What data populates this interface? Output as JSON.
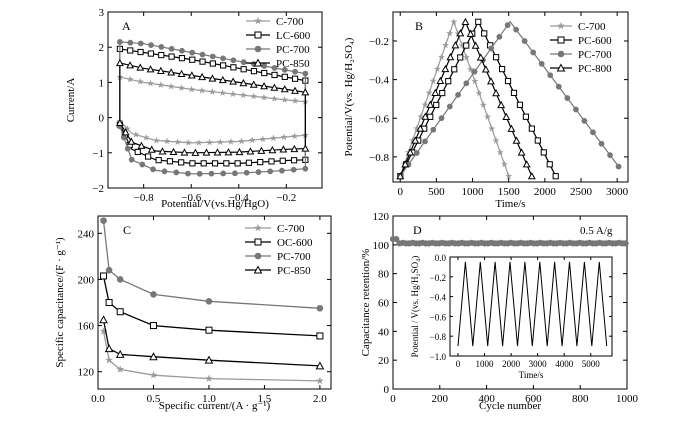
{
  "chart_data": [
    {
      "panel": "A",
      "type": "line",
      "xlabel": "Potential/V(vs.Hg/HgO)",
      "ylabel": "Current/A",
      "xlim": [
        -0.95,
        -0.05
      ],
      "ylim": [
        -2,
        3
      ],
      "xticks": [
        -0.8,
        -0.6,
        -0.4,
        -0.2
      ],
      "xtick_labels": [
        "−0.8",
        "−0.6",
        "−0.4",
        "−0.2"
      ],
      "yticks": [
        -2,
        -1,
        0,
        1,
        2,
        3
      ],
      "yticks_labels": [
        "−2",
        "−1",
        "0",
        "1",
        "2",
        "3"
      ],
      "legend_position": "top-right",
      "series": [
        {
          "name": "C-700",
          "color": "#9a9a9a",
          "marker": "star",
          "upper": [
            [
              -0.9,
              1.15
            ],
            [
              -0.8,
              1.0
            ],
            [
              -0.6,
              0.8
            ],
            [
              -0.4,
              0.65
            ],
            [
              -0.2,
              0.5
            ],
            [
              -0.12,
              0.45
            ]
          ],
          "lower": [
            [
              -0.9,
              -0.1
            ],
            [
              -0.85,
              -0.45
            ],
            [
              -0.75,
              -0.65
            ],
            [
              -0.6,
              -0.72
            ],
            [
              -0.4,
              -0.68
            ],
            [
              -0.2,
              -0.55
            ],
            [
              -0.12,
              -0.5
            ]
          ]
        },
        {
          "name": "LC-600",
          "color": "#000000",
          "marker": "square",
          "upper": [
            [
              -0.9,
              1.95
            ],
            [
              -0.8,
              1.85
            ],
            [
              -0.6,
              1.65
            ],
            [
              -0.4,
              1.4
            ],
            [
              -0.2,
              1.15
            ],
            [
              -0.12,
              1.05
            ]
          ],
          "lower": [
            [
              -0.9,
              -0.2
            ],
            [
              -0.85,
              -0.9
            ],
            [
              -0.75,
              -1.2
            ],
            [
              -0.6,
              -1.3
            ],
            [
              -0.4,
              -1.3
            ],
            [
              -0.2,
              -1.22
            ],
            [
              -0.12,
              -1.2
            ]
          ]
        },
        {
          "name": "PC-700",
          "color": "#777777",
          "marker": "circle",
          "upper": [
            [
              -0.9,
              2.15
            ],
            [
              -0.8,
              2.1
            ],
            [
              -0.6,
              1.85
            ],
            [
              -0.4,
              1.6
            ],
            [
              -0.2,
              1.35
            ],
            [
              -0.12,
              1.25
            ]
          ],
          "lower": [
            [
              -0.9,
              -0.25
            ],
            [
              -0.85,
              -1.2
            ],
            [
              -0.75,
              -1.5
            ],
            [
              -0.6,
              -1.6
            ],
            [
              -0.4,
              -1.58
            ],
            [
              -0.2,
              -1.5
            ],
            [
              -0.12,
              -1.45
            ]
          ]
        },
        {
          "name": "PC-850",
          "color": "#000000",
          "marker": "triangle",
          "upper": [
            [
              -0.9,
              1.55
            ],
            [
              -0.8,
              1.4
            ],
            [
              -0.6,
              1.2
            ],
            [
              -0.4,
              1.0
            ],
            [
              -0.2,
              0.8
            ],
            [
              -0.12,
              0.72
            ]
          ],
          "lower": [
            [
              -0.9,
              -0.15
            ],
            [
              -0.85,
              -0.7
            ],
            [
              -0.75,
              -0.95
            ],
            [
              -0.6,
              -1.0
            ],
            [
              -0.4,
              -0.98
            ],
            [
              -0.2,
              -0.9
            ],
            [
              -0.12,
              -0.88
            ]
          ]
        }
      ]
    },
    {
      "panel": "B",
      "type": "line",
      "xlabel": "Time/s",
      "ylabel": "Potential/V(vs. Hg/H₂SO₄)",
      "xlim": [
        -100,
        3150
      ],
      "ylim": [
        -0.93,
        -0.05
      ],
      "xticks": [
        0,
        500,
        1000,
        1500,
        2000,
        2500,
        3000
      ],
      "xtick_labels": [
        "0",
        "500",
        "1000",
        "1500",
        "2000",
        "2500",
        "3000"
      ],
      "yticks": [
        -0.8,
        -0.6,
        -0.4,
        -0.2
      ],
      "yticks_labels": [
        "−0.8",
        "−0.6",
        "−0.4",
        "−0.2"
      ],
      "legend_position": "top-right",
      "series": [
        {
          "name": "C-700",
          "color": "#9a9a9a",
          "marker": "star",
          "points": [
            [
              0,
              -0.9
            ],
            [
              740,
              -0.1
            ],
            [
              1500,
              -0.9
            ]
          ]
        },
        {
          "name": "PC-600",
          "color": "#000000",
          "marker": "square",
          "points": [
            [
              0,
              -0.9
            ],
            [
              1080,
              -0.1
            ],
            [
              2150,
              -0.9
            ]
          ]
        },
        {
          "name": "PC-700",
          "color": "#777777",
          "marker": "circle",
          "points": [
            [
              0,
              -0.9
            ],
            [
              1520,
              -0.1
            ],
            [
              3020,
              -0.85
            ]
          ]
        },
        {
          "name": "PC-800",
          "color": "#000000",
          "marker": "triangle",
          "points": [
            [
              0,
              -0.9
            ],
            [
              900,
              -0.1
            ],
            [
              1820,
              -0.9
            ]
          ]
        }
      ]
    },
    {
      "panel": "C",
      "type": "line",
      "xlabel": "Specific current/(A · g⁻¹)",
      "ylabel": "Specific capacitance/(F · g⁻¹)",
      "xlim": [
        0,
        2.1
      ],
      "ylim": [
        105,
        255
      ],
      "xticks": [
        0.0,
        0.5,
        1.0,
        1.5,
        2.0
      ],
      "xtick_labels": [
        "0.0",
        "0.5",
        "1.0",
        "1.5",
        "2.0"
      ],
      "yticks": [
        120,
        160,
        200,
        240
      ],
      "yticks_labels": [
        "120",
        "160",
        "200",
        "240"
      ],
      "legend_position": "top-right",
      "x": [
        0.05,
        0.1,
        0.2,
        0.5,
        1.0,
        2.0
      ],
      "series": [
        {
          "name": "C-700",
          "color": "#9a9a9a",
          "marker": "star",
          "values": [
            155,
            130,
            122,
            117,
            114,
            112
          ]
        },
        {
          "name": "OC-600",
          "color": "#000000",
          "marker": "square",
          "values": [
            203,
            180,
            172,
            160,
            156,
            151
          ]
        },
        {
          "name": "PC-700",
          "color": "#777777",
          "marker": "circle",
          "values": [
            251,
            208,
            200,
            187,
            181,
            175
          ]
        },
        {
          "name": "PC-850",
          "color": "#000000",
          "marker": "triangle",
          "values": [
            165,
            140,
            135,
            133,
            130,
            125
          ]
        }
      ]
    },
    {
      "panel": "D",
      "type": "scatter",
      "xlabel": "Cycle number",
      "ylabel": "Capacitance retention/%",
      "xlim": [
        0,
        1000
      ],
      "ylim": [
        0,
        120
      ],
      "xticks": [
        0,
        200,
        400,
        600,
        800,
        1000
      ],
      "xtick_labels": [
        "0",
        "200",
        "400",
        "600",
        "800",
        "1000"
      ],
      "yticks": [
        0,
        20,
        40,
        60,
        80,
        100,
        120
      ],
      "yticks_labels": [
        "0",
        "20",
        "40",
        "60",
        "80",
        "100",
        "120"
      ],
      "annotation": "0.5 A/g",
      "retention": {
        "start": 104,
        "level": 101,
        "marker": "circle",
        "color": "#777777"
      },
      "inset": {
        "xlabel": "Time/s",
        "ylabel": "Potential / V(vs. Hg/H₂SO₄)",
        "xlim": [
          -300,
          5800
        ],
        "ylim": [
          -1.0,
          0.0
        ],
        "xticks": [
          0,
          1000,
          2000,
          3000,
          4000,
          5000
        ],
        "xtick_labels": [
          "0",
          "1000",
          "2000",
          "3000",
          "4000",
          "5000"
        ],
        "yticks": [
          -1.0,
          -0.8,
          -0.6,
          -0.4,
          -0.2,
          0.0
        ],
        "yticks_labels": [
          "−1.0",
          "−0.8",
          "−0.6",
          "−0.4",
          "−0.2",
          "0.0"
        ],
        "cycles": 10,
        "period": 560,
        "vmin": -0.9,
        "vmax": -0.05
      }
    }
  ]
}
